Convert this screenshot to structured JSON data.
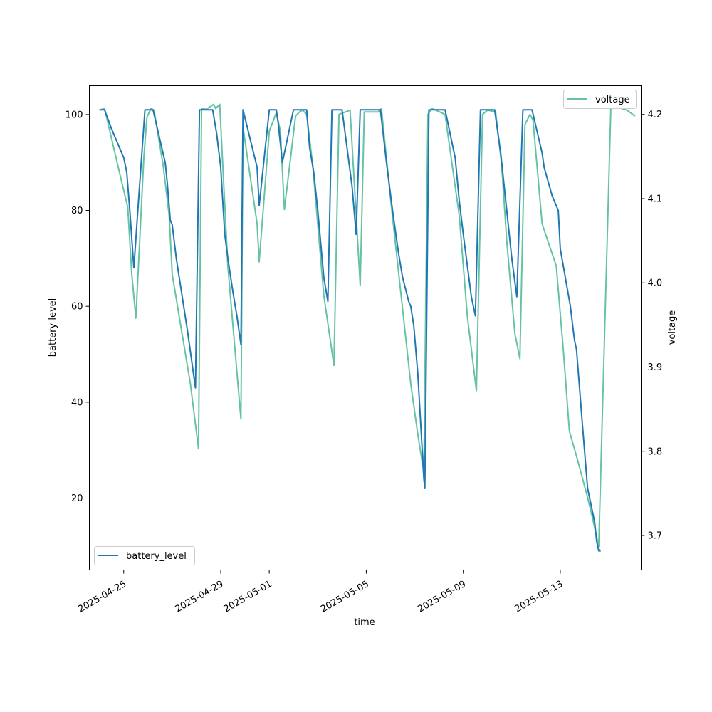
{
  "chart_data": {
    "type": "line",
    "xlabel": "time",
    "ylabel_left": "battery level",
    "ylabel_right": "voltage",
    "xlim": [
      "2025-04-23T14:00",
      "2025-05-16T08:00"
    ],
    "ylim_left": [
      5,
      106
    ],
    "ylim_right": [
      3.659,
      4.234
    ],
    "x_ticks": [
      "2025-04-25",
      "2025-04-29",
      "2025-05-01",
      "2025-05-05",
      "2025-05-09",
      "2025-05-13"
    ],
    "y_ticks_left": [
      "20",
      "40",
      "60",
      "80",
      "100"
    ],
    "y_ticks_right": [
      "3.7",
      "3.8",
      "3.9",
      "4.0",
      "4.1",
      "4.2"
    ],
    "legend_left": {
      "label": "battery_level",
      "placement": "lower left"
    },
    "legend_right": {
      "label": "voltage",
      "placement": "upper right"
    },
    "colors": {
      "battery_level": "#1f77b4",
      "voltage": "#66c2a5"
    },
    "series": [
      {
        "name": "battery_level",
        "axis": "left",
        "points": [
          [
            "2025-04-24T00:00",
            101
          ],
          [
            "2025-04-24T05:00",
            101
          ],
          [
            "2025-04-24T12:00",
            97
          ],
          [
            "2025-04-24T20:00",
            93
          ],
          [
            "2025-04-25T00:00",
            91
          ],
          [
            "2025-04-25T03:00",
            88
          ],
          [
            "2025-04-25T06:00",
            80
          ],
          [
            "2025-04-25T10:00",
            68
          ],
          [
            "2025-04-25T14:00",
            80
          ],
          [
            "2025-04-25T21:00",
            101
          ],
          [
            "2025-04-26T05:00",
            101
          ],
          [
            "2025-04-26T17:00",
            90
          ],
          [
            "2025-04-26T19:00",
            86
          ],
          [
            "2025-04-26T22:00",
            78
          ],
          [
            "2025-04-27T00:00",
            77
          ],
          [
            "2025-04-27T04:00",
            70
          ],
          [
            "2025-04-27T15:00",
            55
          ],
          [
            "2025-04-27T23:00",
            43
          ],
          [
            "2025-04-28T03:00",
            101
          ],
          [
            "2025-04-28T16:00",
            101
          ],
          [
            "2025-04-28T20:00",
            96
          ],
          [
            "2025-04-29T00:00",
            89
          ],
          [
            "2025-04-29T04:00",
            75
          ],
          [
            "2025-04-29T07:00",
            70
          ],
          [
            "2025-04-29T12:00",
            63
          ],
          [
            "2025-04-29T16:00",
            58
          ],
          [
            "2025-04-29T20:00",
            52
          ],
          [
            "2025-04-29T22:00",
            101
          ],
          [
            "2025-04-30T12:00",
            89
          ],
          [
            "2025-04-30T14:00",
            81
          ],
          [
            "2025-05-01T00:00",
            101
          ],
          [
            "2025-05-01T07:00",
            101
          ],
          [
            "2025-05-01T09:00",
            98
          ],
          [
            "2025-05-01T13:00",
            90
          ],
          [
            "2025-05-02T00:00",
            101
          ],
          [
            "2025-05-02T13:00",
            101
          ],
          [
            "2025-05-02T16:00",
            93
          ],
          [
            "2025-05-02T20:00",
            88
          ],
          [
            "2025-05-03T00:00",
            80
          ],
          [
            "2025-05-03T06:00",
            66
          ],
          [
            "2025-05-03T10:00",
            61
          ],
          [
            "2025-05-03T14:00",
            101
          ],
          [
            "2025-05-04T00:00",
            101
          ],
          [
            "2025-05-04T10:00",
            85
          ],
          [
            "2025-05-04T14:00",
            75
          ],
          [
            "2025-05-04T18:00",
            101
          ],
          [
            "2025-05-05T14:00",
            101
          ],
          [
            "2025-05-05T20:00",
            90
          ],
          [
            "2025-05-06T02:00",
            80
          ],
          [
            "2025-05-06T08:00",
            71
          ],
          [
            "2025-05-06T12:00",
            66
          ],
          [
            "2025-05-06T18:00",
            61
          ],
          [
            "2025-05-06T20:00",
            60
          ],
          [
            "2025-05-06T23:00",
            56
          ],
          [
            "2025-05-07T03:00",
            46
          ],
          [
            "2025-05-07T09:00",
            24
          ],
          [
            "2025-05-07T10:00",
            22
          ],
          [
            "2025-05-07T14:00",
            101
          ],
          [
            "2025-05-08T06:00",
            101
          ],
          [
            "2025-05-08T16:00",
            91
          ],
          [
            "2025-05-08T20:00",
            82
          ],
          [
            "2025-05-09T00:00",
            75
          ],
          [
            "2025-05-09T08:00",
            62
          ],
          [
            "2025-05-09T12:00",
            58
          ],
          [
            "2025-05-09T17:00",
            101
          ],
          [
            "2025-05-10T07:00",
            101
          ],
          [
            "2025-05-10T13:00",
            92
          ],
          [
            "2025-05-10T19:00",
            80
          ],
          [
            "2025-05-11T00:00",
            70
          ],
          [
            "2025-05-11T05:00",
            62
          ],
          [
            "2025-05-11T11:00",
            101
          ],
          [
            "2025-05-11T20:00",
            101
          ],
          [
            "2025-05-12T06:00",
            92
          ],
          [
            "2025-05-12T08:00",
            89
          ],
          [
            "2025-05-12T16:00",
            83
          ],
          [
            "2025-05-12T22:00",
            80
          ],
          [
            "2025-05-13T00:00",
            72
          ],
          [
            "2025-05-13T10:00",
            60
          ],
          [
            "2025-05-13T14:00",
            53
          ],
          [
            "2025-05-13T16:00",
            51
          ],
          [
            "2025-05-13T22:00",
            35
          ],
          [
            "2025-05-14T03:00",
            22
          ],
          [
            "2025-05-14T10:00",
            15
          ],
          [
            "2025-05-14T12:00",
            11
          ],
          [
            "2025-05-14T14:00",
            9
          ],
          [
            "2025-05-14T16:00",
            9
          ]
        ]
      },
      {
        "name": "voltage",
        "axis": "right",
        "points": [
          [
            "2025-04-24T00:00",
            4.205
          ],
          [
            "2025-04-24T05:00",
            4.207
          ],
          [
            "2025-04-24T20:00",
            4.13
          ],
          [
            "2025-04-25T04:00",
            4.09
          ],
          [
            "2025-04-25T08:00",
            4.01
          ],
          [
            "2025-04-25T12:00",
            3.958
          ],
          [
            "2025-04-25T20:00",
            4.15
          ],
          [
            "2025-04-25T23:00",
            4.197
          ],
          [
            "2025-04-26T03:00",
            4.207
          ],
          [
            "2025-04-26T06:00",
            4.205
          ],
          [
            "2025-04-26T15:00",
            4.14
          ],
          [
            "2025-04-26T21:00",
            4.08
          ],
          [
            "2025-04-27T00:00",
            4.01
          ],
          [
            "2025-04-27T18:00",
            3.88
          ],
          [
            "2025-04-28T02:00",
            3.803
          ],
          [
            "2025-04-28T05:00",
            4.207
          ],
          [
            "2025-04-28T10:00",
            4.206
          ],
          [
            "2025-04-28T17:00",
            4.212
          ],
          [
            "2025-04-28T19:00",
            4.207
          ],
          [
            "2025-04-28T23:00",
            4.212
          ],
          [
            "2025-04-29T07:00",
            4.02
          ],
          [
            "2025-04-29T20:00",
            3.838
          ],
          [
            "2025-04-29T22:00",
            4.185
          ],
          [
            "2025-04-30T12:00",
            4.07
          ],
          [
            "2025-04-30T14:00",
            4.025
          ],
          [
            "2025-05-01T00:00",
            4.18
          ],
          [
            "2025-05-01T07:00",
            4.202
          ],
          [
            "2025-05-01T11:00",
            4.18
          ],
          [
            "2025-05-01T15:00",
            4.087
          ],
          [
            "2025-05-02T02:00",
            4.198
          ],
          [
            "2025-05-02T06:00",
            4.203
          ],
          [
            "2025-05-02T09:00",
            4.205
          ],
          [
            "2025-05-02T13:00",
            4.2
          ],
          [
            "2025-05-02T19:00",
            4.14
          ],
          [
            "2025-05-03T06:00",
            3.985
          ],
          [
            "2025-05-03T16:00",
            3.902
          ],
          [
            "2025-05-03T21:00",
            4.2
          ],
          [
            "2025-05-04T08:00",
            4.205
          ],
          [
            "2025-05-04T15:00",
            4.06
          ],
          [
            "2025-05-04T18:00",
            3.997
          ],
          [
            "2025-05-04T22:00",
            4.203
          ],
          [
            "2025-05-05T12:00",
            4.203
          ],
          [
            "2025-05-05T15:00",
            4.207
          ],
          [
            "2025-05-06T00:00",
            4.1
          ],
          [
            "2025-05-06T20:00",
            3.88
          ],
          [
            "2025-05-07T03:00",
            3.82
          ],
          [
            "2025-05-07T09:00",
            3.775
          ],
          [
            "2025-05-07T13:00",
            4.2
          ],
          [
            "2025-05-07T17:00",
            4.207
          ],
          [
            "2025-05-08T06:00",
            4.2
          ],
          [
            "2025-05-08T20:00",
            4.08
          ],
          [
            "2025-05-09T04:00",
            3.96
          ],
          [
            "2025-05-09T13:00",
            3.872
          ],
          [
            "2025-05-09T19:00",
            4.2
          ],
          [
            "2025-05-10T00:00",
            4.205
          ],
          [
            "2025-05-10T08:00",
            4.203
          ],
          [
            "2025-05-10T14:00",
            4.14
          ],
          [
            "2025-05-10T19:00",
            4.05
          ],
          [
            "2025-05-11T03:00",
            3.94
          ],
          [
            "2025-05-11T08:00",
            3.91
          ],
          [
            "2025-05-11T13:00",
            4.188
          ],
          [
            "2025-05-11T18:00",
            4.2
          ],
          [
            "2025-05-11T21:00",
            4.193
          ],
          [
            "2025-05-12T06:00",
            4.07
          ],
          [
            "2025-05-12T20:00",
            4.02
          ],
          [
            "2025-05-13T03:00",
            3.92
          ],
          [
            "2025-05-13T09:00",
            3.824
          ],
          [
            "2025-05-13T17:00",
            3.79
          ],
          [
            "2025-05-14T03:00",
            3.745
          ],
          [
            "2025-05-14T08:00",
            3.72
          ],
          [
            "2025-05-14T14:00",
            3.687
          ],
          [
            "2025-05-15T02:00",
            4.207
          ],
          [
            "2025-05-15T10:00",
            4.208
          ],
          [
            "2025-05-15T18:00",
            4.205
          ],
          [
            "2025-05-16T02:00",
            4.198
          ]
        ]
      }
    ]
  }
}
